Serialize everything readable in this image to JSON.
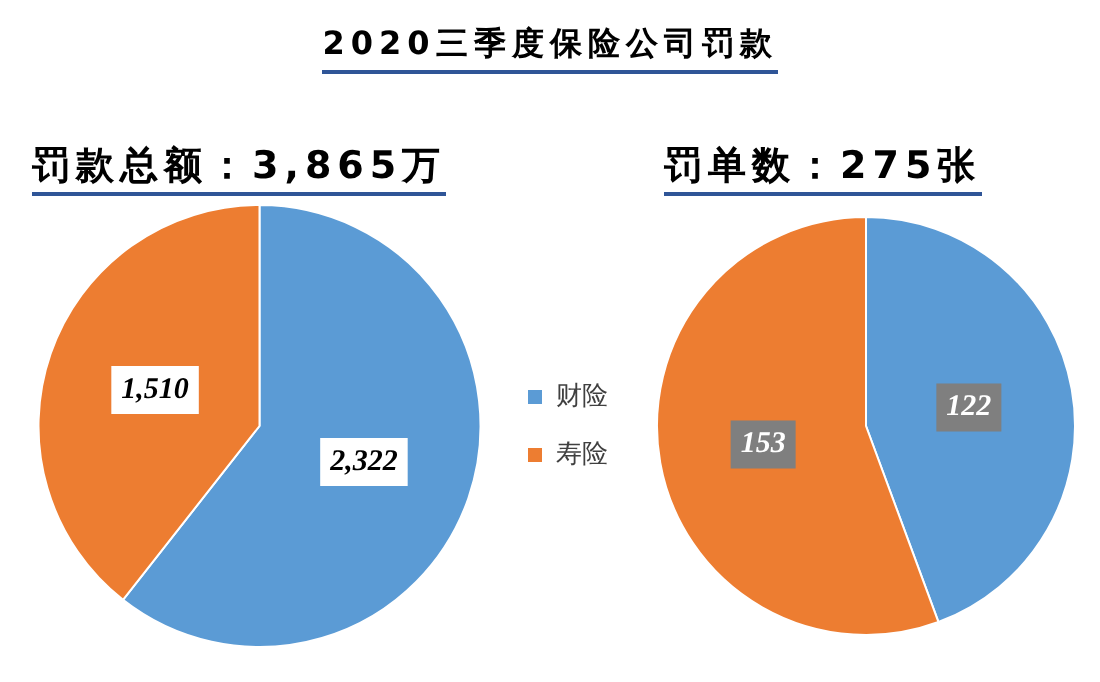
{
  "chart_data": [
    {
      "type": "pie",
      "title": "2020三季度保险公司罚款",
      "subtitle": "罚款总额：3,865万",
      "categories": [
        "财险",
        "寿险"
      ],
      "values": [
        2322,
        1510
      ],
      "colors": [
        "#5b9bd5",
        "#ed7d31"
      ],
      "value_labels": [
        "2,322",
        "1,510"
      ],
      "legend": "right"
    },
    {
      "type": "pie",
      "subtitle": "罚单数：275张",
      "categories": [
        null,
        null
      ],
      "values": [
        122,
        153
      ],
      "colors": [
        "#5b9bd5",
        "#ed7d31"
      ],
      "value_labels": [
        "122",
        "153"
      ]
    }
  ]
}
